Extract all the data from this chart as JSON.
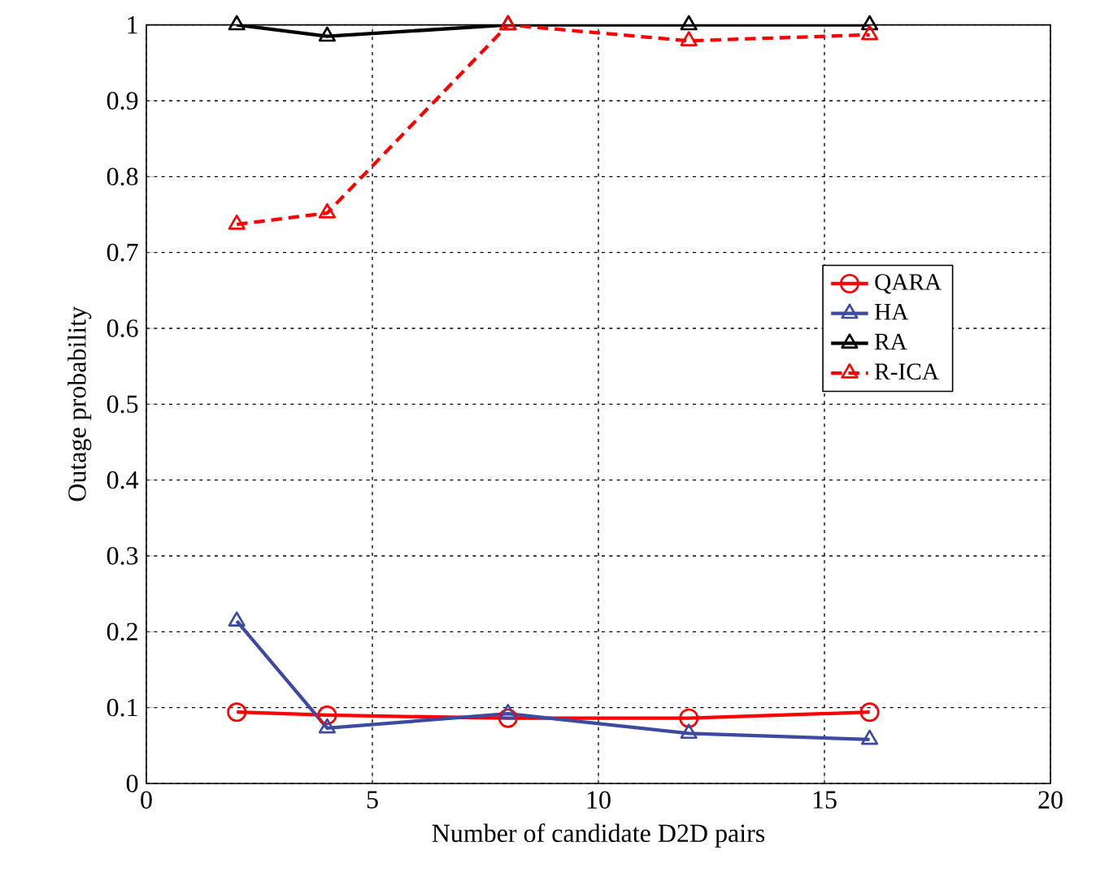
{
  "chart_data": {
    "type": "line",
    "xlabel": "Number of candidate D2D pairs",
    "ylabel": "Outage probability",
    "x": [
      2,
      4,
      8,
      12,
      16
    ],
    "series": [
      {
        "name": "QARA",
        "color": "#ff0000",
        "marker": "circle",
        "line_style": "solid",
        "values": [
          0.094,
          0.09,
          0.086,
          0.086,
          0.094
        ]
      },
      {
        "name": "HA",
        "color": "#3c4aa0",
        "marker": "triangle",
        "line_style": "solid",
        "values": [
          0.214,
          0.073,
          0.092,
          0.066,
          0.058
        ]
      },
      {
        "name": "RA",
        "color": "#000000",
        "marker": "triangle",
        "line_style": "solid",
        "values": [
          1.0,
          0.985,
          1.0,
          1.0,
          1.0
        ]
      },
      {
        "name": "R-ICA",
        "color": "#ff0000",
        "marker": "triangle",
        "line_style": "dashed",
        "values": [
          0.737,
          0.752,
          1.0,
          0.979,
          0.987
        ]
      }
    ],
    "xlim": [
      0,
      20
    ],
    "ylim": [
      0,
      1
    ],
    "xticks": [
      0,
      5,
      10,
      15,
      20
    ],
    "yticks": [
      0,
      0.1,
      0.2,
      0.3,
      0.4,
      0.5,
      0.6,
      0.7,
      0.8,
      0.9,
      1
    ],
    "grid": true,
    "legend": "right"
  }
}
